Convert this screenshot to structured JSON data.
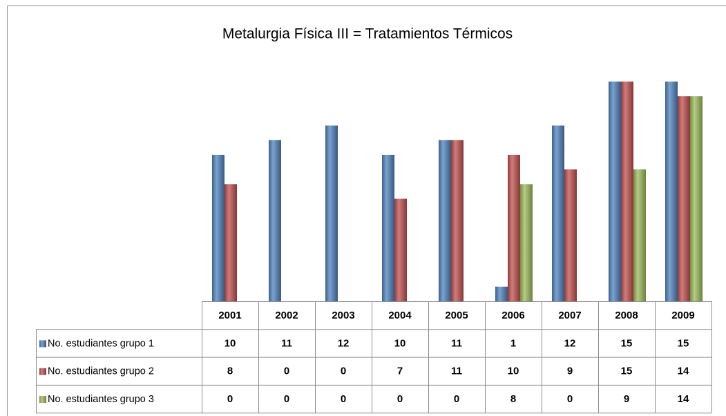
{
  "chart_data": {
    "type": "bar",
    "title": "Metalurgia Física III = Tratamientos Térmicos",
    "categories": [
      "2001",
      "2002",
      "2003",
      "2004",
      "2005",
      "2006",
      "2007",
      "2008",
      "2009"
    ],
    "series": [
      {
        "name": "No. estudiantes grupo 1",
        "color": "#4f81bd",
        "values": [
          10,
          11,
          12,
          10,
          11,
          1,
          12,
          15,
          15
        ]
      },
      {
        "name": "No. estudiantes grupo 2",
        "color": "#c0504d",
        "values": [
          8,
          0,
          0,
          7,
          11,
          10,
          9,
          15,
          14
        ]
      },
      {
        "name": "No. estudiantes grupo 3",
        "color": "#9bbb59",
        "values": [
          0,
          0,
          0,
          0,
          0,
          8,
          0,
          9,
          14
        ]
      }
    ]
  }
}
